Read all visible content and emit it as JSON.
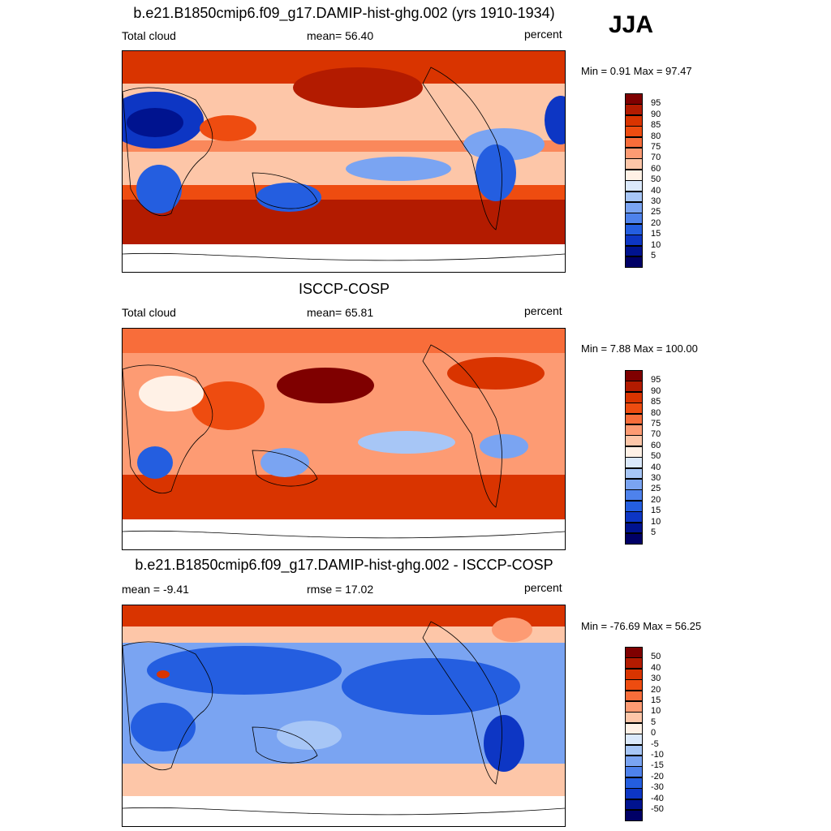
{
  "season": "JJA",
  "panels": [
    {
      "id": "model",
      "title": "b.e21.B1850cmip6.f09_g17.DAMIP-hist-ghg.002 (yrs 1910-1934)",
      "left_label": "Total cloud",
      "center_label": "mean=  56.40",
      "right_label": "percent",
      "minmax": "Min =   0.91 Max =  97.47",
      "colorbar_levels": [
        "95",
        "90",
        "85",
        "80",
        "75",
        "70",
        "60",
        "50",
        "40",
        "30",
        "25",
        "20",
        "15",
        "10",
        "5"
      ]
    },
    {
      "id": "obs",
      "title": "ISCCP-COSP",
      "left_label": "Total cloud",
      "center_label": "mean=  65.81",
      "right_label": "percent",
      "minmax": "Min =   7.88 Max = 100.00",
      "colorbar_levels": [
        "95",
        "90",
        "85",
        "80",
        "75",
        "70",
        "60",
        "50",
        "40",
        "30",
        "25",
        "20",
        "15",
        "10",
        "5"
      ]
    },
    {
      "id": "diff",
      "title": "b.e21.B1850cmip6.f09_g17.DAMIP-hist-ghg.002 - ISCCP-COSP",
      "left_label": "mean =  -9.41",
      "center_label": "rmse =  17.02",
      "right_label": "percent",
      "minmax": "Min = -76.69 Max =  56.25",
      "colorbar_levels": [
        "50",
        "40",
        "30",
        "20",
        "15",
        "10",
        "5",
        "0",
        "-5",
        "-10",
        "-15",
        "-20",
        "-30",
        "-40",
        "-50"
      ]
    }
  ],
  "colors": {
    "abs_palette": [
      "#7f0000",
      "#b31b00",
      "#d93400",
      "#ee4c10",
      "#f86d3a",
      "#fd9b73",
      "#fdc6a8",
      "#fff1e6",
      "#dbe9fb",
      "#a7c6f6",
      "#7aa4f2",
      "#4e82ec",
      "#245ee0",
      "#0d36c4",
      "#00138f",
      "#000066"
    ],
    "diff_palette": [
      "#7f0000",
      "#b31b00",
      "#d93400",
      "#ee4c10",
      "#f86d3a",
      "#fd9b73",
      "#fdc6a8",
      "#fff1e6",
      "#dbe9fb",
      "#a7c6f6",
      "#7aa4f2",
      "#4e82ec",
      "#245ee0",
      "#0d36c4",
      "#00138f",
      "#000066"
    ]
  }
}
